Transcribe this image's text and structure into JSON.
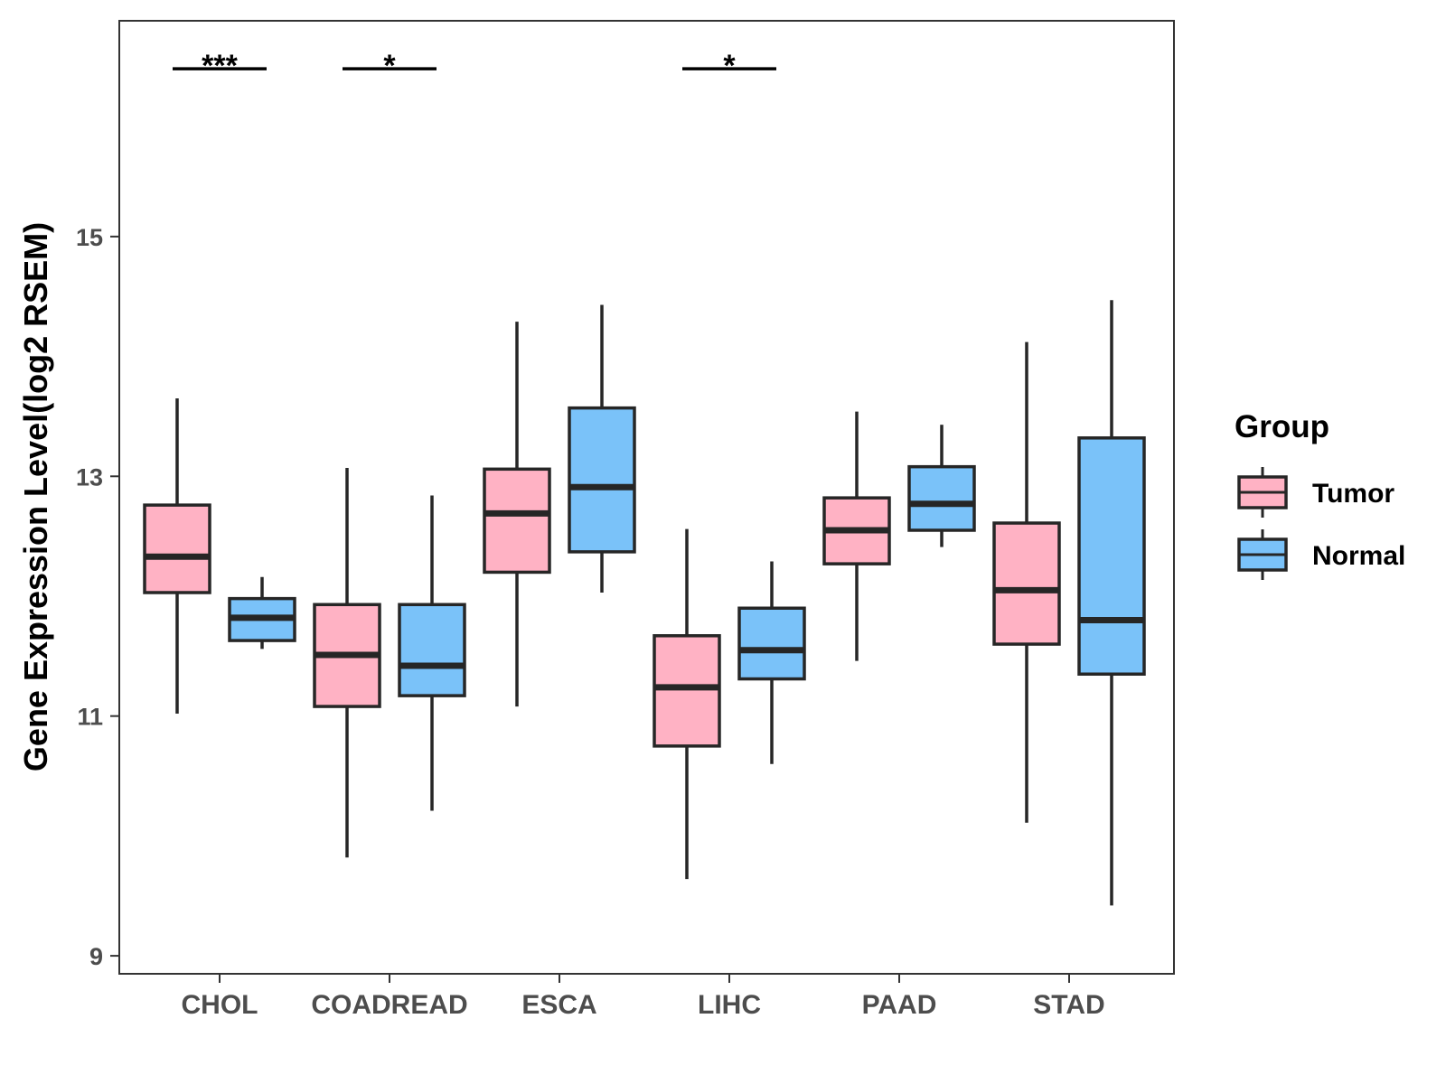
{
  "chart_data": {
    "type": "boxplot",
    "ylabel": "Gene Expression Level(log2 RSEM)",
    "xlabel": "",
    "ylim": [
      8.85,
      16.8
    ],
    "yticks": [
      9,
      11,
      13,
      15
    ],
    "categories": [
      "CHOL",
      "COADREAD",
      "ESCA",
      "LIHC",
      "PAAD",
      "STAD"
    ],
    "legend": {
      "title": "Group",
      "position": "right",
      "entries": [
        {
          "name": "Tumor",
          "color": "#FFB2C4"
        },
        {
          "name": "Normal",
          "color": "#7AC2F9"
        }
      ]
    },
    "series": [
      {
        "name": "Tumor",
        "color": "#FFB2C4",
        "boxes": [
          {
            "category": "CHOL",
            "min": 11.02,
            "q1": 12.03,
            "median": 12.33,
            "q3": 12.76,
            "max": 13.65
          },
          {
            "category": "COADREAD",
            "min": 9.82,
            "q1": 11.08,
            "median": 11.51,
            "q3": 11.93,
            "max": 13.07
          },
          {
            "category": "ESCA",
            "min": 11.08,
            "q1": 12.2,
            "median": 12.69,
            "q3": 13.06,
            "max": 14.29
          },
          {
            "category": "LIHC",
            "min": 9.64,
            "q1": 10.75,
            "median": 11.24,
            "q3": 11.67,
            "max": 12.56
          },
          {
            "category": "PAAD",
            "min": 11.46,
            "q1": 12.27,
            "median": 12.55,
            "q3": 12.82,
            "max": 13.54
          },
          {
            "category": "STAD",
            "min": 10.11,
            "q1": 11.6,
            "median": 12.05,
            "q3": 12.61,
            "max": 14.12
          }
        ]
      },
      {
        "name": "Normal",
        "color": "#7AC2F9",
        "boxes": [
          {
            "category": "CHOL",
            "min": 11.56,
            "q1": 11.63,
            "median": 11.82,
            "q3": 11.98,
            "max": 12.16
          },
          {
            "category": "COADREAD",
            "min": 10.21,
            "q1": 11.17,
            "median": 11.42,
            "q3": 11.93,
            "max": 12.84
          },
          {
            "category": "ESCA",
            "min": 12.03,
            "q1": 12.37,
            "median": 12.91,
            "q3": 13.57,
            "max": 14.43
          },
          {
            "category": "LIHC",
            "min": 10.6,
            "q1": 11.31,
            "median": 11.55,
            "q3": 11.9,
            "max": 12.29
          },
          {
            "category": "PAAD",
            "min": 12.41,
            "q1": 12.55,
            "median": 12.77,
            "q3": 13.08,
            "max": 13.43
          },
          {
            "category": "STAD",
            "min": 9.42,
            "q1": 11.35,
            "median": 11.8,
            "q3": 13.32,
            "max": 14.47
          }
        ]
      }
    ],
    "annotations": [
      {
        "category": "CHOL",
        "label": "***",
        "y": 16.4
      },
      {
        "category": "COADREAD",
        "label": "*",
        "y": 16.4
      },
      {
        "category": "LIHC",
        "label": "*",
        "y": 16.4
      }
    ]
  }
}
